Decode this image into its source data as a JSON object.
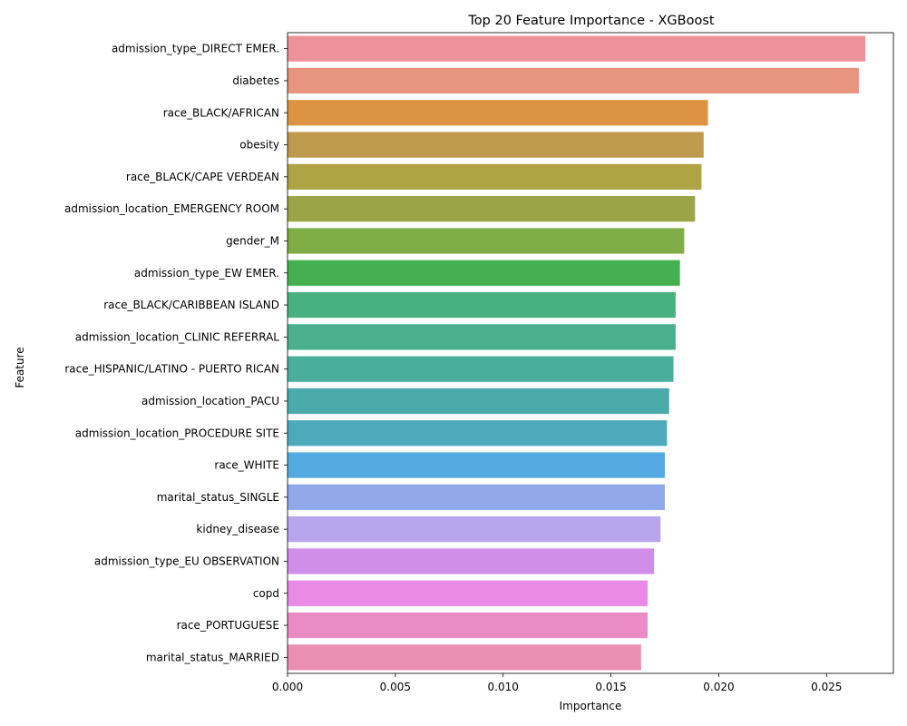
{
  "chart_data": {
    "type": "bar",
    "orientation": "horizontal",
    "title": "Top 20 Feature Importance - XGBoost",
    "xlabel": "Importance",
    "ylabel": "Feature",
    "xlim": [
      0,
      0.0281
    ],
    "xticks": [
      0.0,
      0.005,
      0.01,
      0.015,
      0.02,
      0.025
    ],
    "xtick_labels": [
      "0.000",
      "0.005",
      "0.010",
      "0.015",
      "0.020",
      "0.025"
    ],
    "grid": false,
    "categories": [
      "admission_type_DIRECT EMER.",
      "diabetes",
      "race_BLACK/AFRICAN",
      "obesity",
      "race_BLACK/CAPE VERDEAN",
      "admission_location_EMERGENCY ROOM",
      "gender_M",
      "admission_type_EW EMER.",
      "race_BLACK/CARIBBEAN ISLAND",
      "admission_location_CLINIC REFERRAL",
      "race_HISPANIC/LATINO - PUERTO RICAN",
      "admission_location_PACU",
      "admission_location_PROCEDURE SITE",
      "race_WHITE",
      "marital_status_SINGLE",
      "kidney_disease",
      "admission_type_EU OBSERVATION",
      "copd",
      "race_PORTUGUESE",
      "marital_status_MARRIED"
    ],
    "values": [
      0.0268,
      0.0265,
      0.0195,
      0.0193,
      0.0192,
      0.0189,
      0.0184,
      0.0182,
      0.018,
      0.018,
      0.0179,
      0.0177,
      0.0176,
      0.0175,
      0.0175,
      0.0173,
      0.017,
      0.0167,
      0.0167,
      0.0164
    ],
    "colors": [
      "#ee9199",
      "#e7957f",
      "#dc9443",
      "#bf9a4d",
      "#aea443",
      "#99a546",
      "#80ad45",
      "#45b04f",
      "#47b280",
      "#4baf8e",
      "#4aae9d",
      "#4aabaa",
      "#4daaba",
      "#53aae0",
      "#8fa8e8",
      "#b8a5ee",
      "#d08ee8",
      "#e98ae6",
      "#ea8bc6",
      "#eb8fb0"
    ]
  }
}
